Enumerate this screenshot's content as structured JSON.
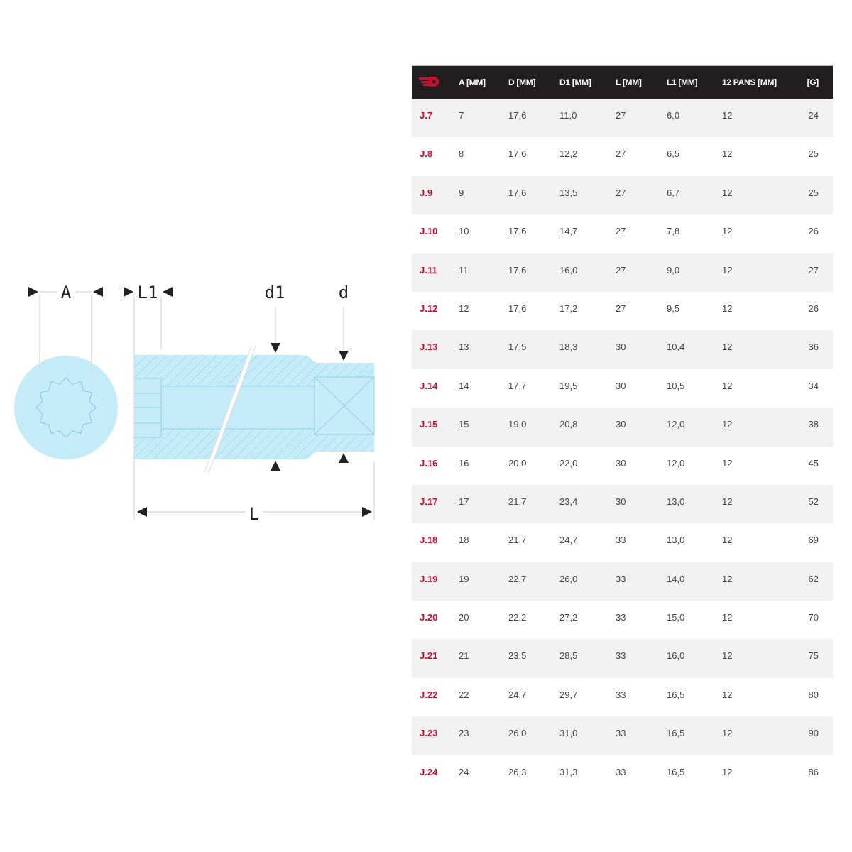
{
  "diagram": {
    "labels": {
      "A": "A",
      "L1": "L1",
      "d1": "d1",
      "d": "d",
      "L": "L"
    },
    "fill_color": "#c6ebf8",
    "line_color": "#7fc9e3"
  },
  "table": {
    "brand_icon": "facom-logo-icon",
    "accent_color": "#c8102e",
    "header_bg": "#231f20",
    "headers": [
      "A [MM]",
      "D [MM]",
      "D1 [MM]",
      "L [MM]",
      "L1 [MM]",
      "12 PANS [MM]",
      "[G]"
    ],
    "rows": [
      [
        "J.7",
        "7",
        "17,6",
        "11,0",
        "27",
        "6,0",
        "12",
        "24"
      ],
      [
        "J.8",
        "8",
        "17,6",
        "12,2",
        "27",
        "6,5",
        "12",
        "25"
      ],
      [
        "J.9",
        "9",
        "17,6",
        "13,5",
        "27",
        "6,7",
        "12",
        "25"
      ],
      [
        "J.10",
        "10",
        "17,6",
        "14,7",
        "27",
        "7,8",
        "12",
        "26"
      ],
      [
        "J.11",
        "11",
        "17,6",
        "16,0",
        "27",
        "9,0",
        "12",
        "27"
      ],
      [
        "J.12",
        "12",
        "17,6",
        "17,2",
        "27",
        "9,5",
        "12",
        "26"
      ],
      [
        "J.13",
        "13",
        "17,5",
        "18,3",
        "30",
        "10,4",
        "12",
        "36"
      ],
      [
        "J.14",
        "14",
        "17,7",
        "19,5",
        "30",
        "10,5",
        "12",
        "34"
      ],
      [
        "J.15",
        "15",
        "19,0",
        "20,8",
        "30",
        "12,0",
        "12",
        "38"
      ],
      [
        "J.16",
        "16",
        "20,0",
        "22,0",
        "30",
        "12,0",
        "12",
        "45"
      ],
      [
        "J.17",
        "17",
        "21,7",
        "23,4",
        "30",
        "13,0",
        "12",
        "52"
      ],
      [
        "J.18",
        "18",
        "21,7",
        "24,7",
        "33",
        "13,0",
        "12",
        "69"
      ],
      [
        "J.19",
        "19",
        "22,7",
        "26,0",
        "33",
        "14,0",
        "12",
        "62"
      ],
      [
        "J.20",
        "20",
        "22,2",
        "27,2",
        "33",
        "15,0",
        "12",
        "70"
      ],
      [
        "J.21",
        "21",
        "23,5",
        "28,5",
        "33",
        "16,0",
        "12",
        "75"
      ],
      [
        "J.22",
        "22",
        "24,7",
        "29,7",
        "33",
        "16,5",
        "12",
        "80"
      ],
      [
        "J.23",
        "23",
        "26,0",
        "31,0",
        "33",
        "16,5",
        "12",
        "90"
      ],
      [
        "J.24",
        "24",
        "26,3",
        "31,3",
        "33",
        "16,5",
        "12",
        "86"
      ]
    ]
  }
}
